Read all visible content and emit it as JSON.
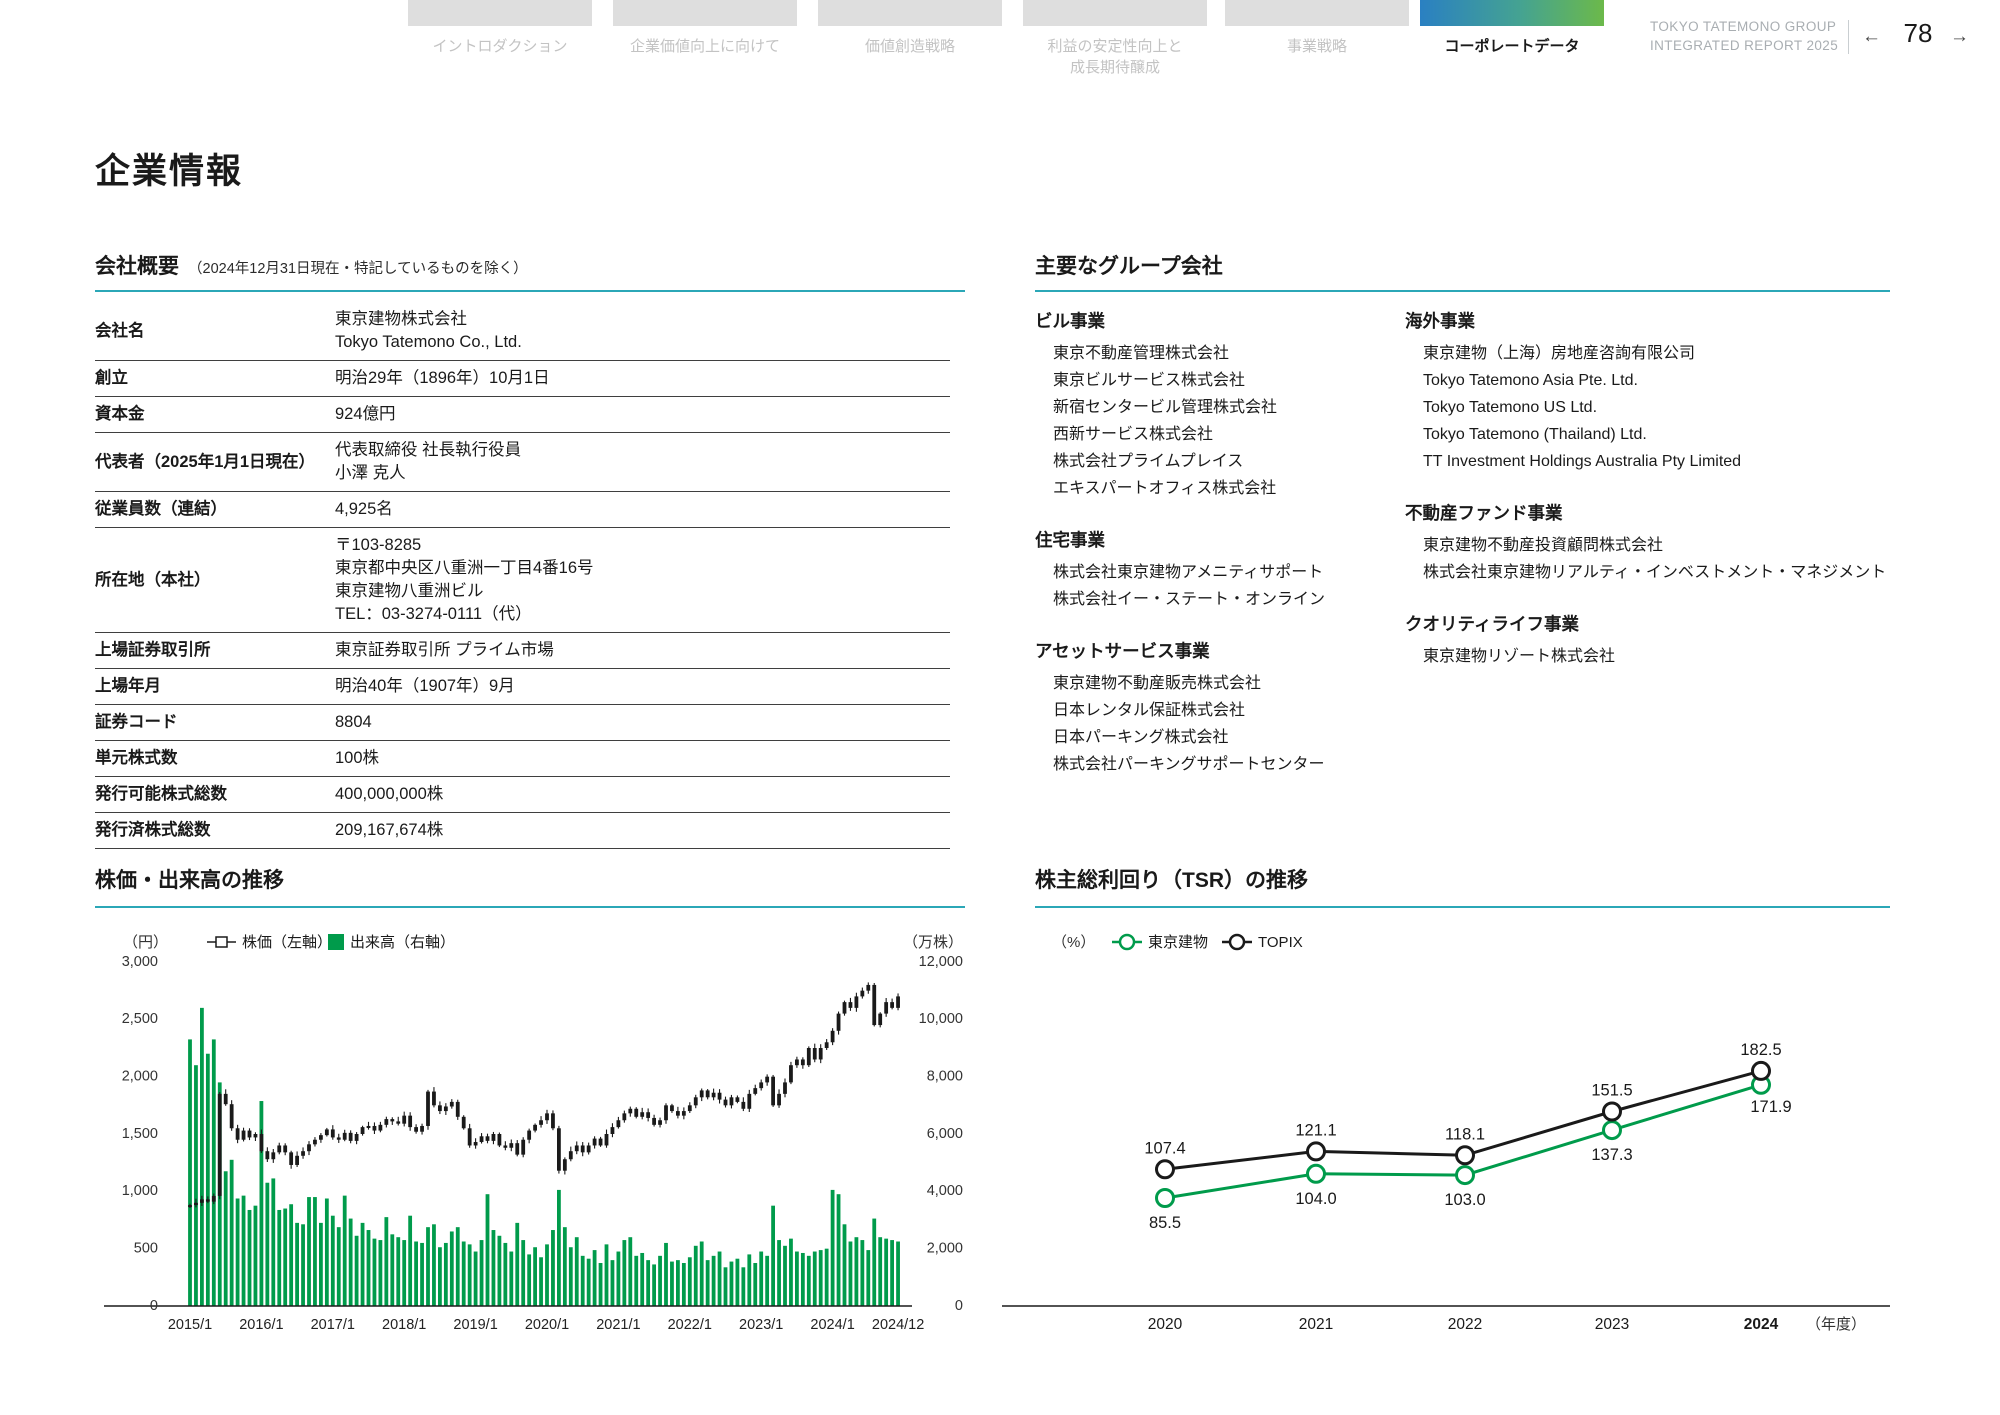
{
  "header": {
    "tabs": [
      {
        "label": "イントロダクション",
        "active": false
      },
      {
        "label": "企業価値向上に向けて",
        "active": false
      },
      {
        "label": "価値創造戦略",
        "active": false
      },
      {
        "label": "利益の安定性向上と\n成長期待醸成",
        "active": false
      },
      {
        "label": "事業戦略",
        "active": false
      },
      {
        "label": "コーポレートデータ",
        "active": true
      }
    ],
    "report_line1": "TOKYO TATEMONO GROUP",
    "report_line2": "INTEGRATED REPORT 2025",
    "pager": {
      "prev": "←",
      "page": "78",
      "next": "→"
    }
  },
  "page_title": "企業情報",
  "company_overview": {
    "title": "会社概要",
    "note": "（2024年12月31日現在・特記しているものを除く）",
    "rows": [
      {
        "label": "会社名",
        "value": "東京建物株式会社\nTokyo Tatemono Co., Ltd."
      },
      {
        "label": "創立",
        "value": "明治29年（1896年）10月1日"
      },
      {
        "label": "資本金",
        "value": "924億円"
      },
      {
        "label": "代表者（2025年1月1日現在）",
        "value": "代表取締役 社長執行役員\n小澤 克人"
      },
      {
        "label": "従業員数（連結）",
        "value": "4,925名"
      },
      {
        "label": "所在地（本社）",
        "value": "〒103-8285\n東京都中央区八重洲一丁目4番16号\n東京建物八重洲ビル\nTEL：03-3274-0111（代）"
      },
      {
        "label": "上場証券取引所",
        "value": "東京証券取引所 プライム市場"
      },
      {
        "label": "上場年月",
        "value": "明治40年（1907年）9月"
      },
      {
        "label": "証券コード",
        "value": "8804"
      },
      {
        "label": "単元株式数",
        "value": "100株"
      },
      {
        "label": "発行可能株式総数",
        "value": "400,000,000株"
      },
      {
        "label": "発行済株式総数",
        "value": "209,167,674株"
      }
    ]
  },
  "group_companies": {
    "title": "主要なグループ会社",
    "columns": [
      [
        {
          "category": "ビル事業",
          "companies": [
            "東京不動産管理株式会社",
            "東京ビルサービス株式会社",
            "新宿センタービル管理株式会社",
            "西新サービス株式会社",
            "株式会社プライムプレイス",
            "エキスパートオフィス株式会社"
          ]
        },
        {
          "category": "住宅事業",
          "companies": [
            "株式会社東京建物アメニティサポート",
            "株式会社イー・ステート・オンライン"
          ]
        },
        {
          "category": "アセットサービス事業",
          "companies": [
            "東京建物不動産販売株式会社",
            "日本レンタル保証株式会社",
            "日本パーキング株式会社",
            "株式会社パーキングサポートセンター"
          ]
        }
      ],
      [
        {
          "category": "海外事業",
          "companies": [
            "東京建物（上海）房地産咨詢有限公司",
            "Tokyo Tatemono Asia Pte. Ltd.",
            "Tokyo Tatemono US Ltd.",
            "Tokyo Tatemono (Thailand) Ltd.",
            "TT Investment Holdings Australia Pty Limited"
          ]
        },
        {
          "category": "不動産ファンド事業",
          "companies": [
            "東京建物不動産投資顧問株式会社",
            "株式会社東京建物リアルティ・インベストメント・マネジメント"
          ]
        },
        {
          "category": "クオリティライフ事業",
          "companies": [
            "東京建物リゾート株式会社"
          ]
        }
      ]
    ]
  },
  "colors": {
    "accent_teal": "#2ba7b7",
    "green": "#009b4b",
    "candle": "#1a1a1a",
    "tab_gradient_start": "#2a80c2",
    "tab_gradient_end": "#6cb94a"
  },
  "chart_data": [
    {
      "id": "stock_volume",
      "type": "candlestick+bar",
      "title": "株価・出来高の推移",
      "unit_left": "（円）",
      "unit_right": "（万株）",
      "legend": [
        {
          "name": "株価（左軸）",
          "marker": "candlestick"
        },
        {
          "name": "出来高（右軸）",
          "marker": "square",
          "color": "#009b4b"
        }
      ],
      "ylim_left": [
        0,
        3000
      ],
      "ylim_right": [
        0,
        12000
      ],
      "y_ticks_left": [
        "3,000",
        "2,500",
        "2,000",
        "1,500",
        "1,000",
        "500",
        "0"
      ],
      "y_ticks_right": [
        "12,000",
        "10,000",
        "8,000",
        "6,000",
        "4,000",
        "2,000",
        "0"
      ],
      "x_ticks": [
        {
          "label": "2015/1",
          "month_index": 0
        },
        {
          "label": "2016/1",
          "month_index": 12
        },
        {
          "label": "2017/1",
          "month_index": 24
        },
        {
          "label": "2018/1",
          "month_index": 36
        },
        {
          "label": "2019/1",
          "month_index": 48
        },
        {
          "label": "2020/1",
          "month_index": 60
        },
        {
          "label": "2021/1",
          "month_index": 72
        },
        {
          "label": "2022/1",
          "month_index": 84
        },
        {
          "label": "2023/1",
          "month_index": 96
        },
        {
          "label": "2024/1",
          "month_index": 108
        },
        {
          "label": "2024/12",
          "month_index": 119
        }
      ],
      "start_month": "2015/1",
      "monthly_close_yen": [
        880,
        900,
        930,
        910,
        960,
        1850,
        1760,
        1550,
        1450,
        1530,
        1470,
        1500,
        1350,
        1280,
        1340,
        1400,
        1340,
        1230,
        1310,
        1350,
        1410,
        1450,
        1490,
        1540,
        1470,
        1450,
        1510,
        1440,
        1500,
        1560,
        1570,
        1530,
        1580,
        1630,
        1610,
        1590,
        1660,
        1560,
        1520,
        1570,
        1870,
        1750,
        1700,
        1740,
        1780,
        1650,
        1550,
        1400,
        1430,
        1480,
        1440,
        1500,
        1400,
        1380,
        1420,
        1320,
        1450,
        1530,
        1580,
        1620,
        1680,
        1550,
        1180,
        1280,
        1350,
        1400,
        1340,
        1400,
        1460,
        1400,
        1500,
        1560,
        1620,
        1680,
        1720,
        1650,
        1690,
        1640,
        1580,
        1620,
        1750,
        1700,
        1660,
        1700,
        1750,
        1820,
        1880,
        1820,
        1860,
        1800,
        1750,
        1820,
        1780,
        1720,
        1850,
        1900,
        1950,
        2000,
        1750,
        1850,
        1950,
        2100,
        2150,
        2100,
        2250,
        2150,
        2250,
        2300,
        2400,
        2550,
        2650,
        2600,
        2700,
        2750,
        2800,
        2450,
        2550,
        2650,
        2600,
        2700
      ],
      "monthly_volume_10k_shares": [
        9300,
        8400,
        10400,
        8800,
        9300,
        7800,
        4700,
        5100,
        3750,
        3850,
        3350,
        3500,
        7150,
        4300,
        4450,
        3350,
        3400,
        3550,
        2900,
        2850,
        3800,
        3800,
        2900,
        3750,
        3150,
        2750,
        3850,
        3050,
        2450,
        2900,
        2650,
        2350,
        2300,
        3100,
        2500,
        2400,
        2300,
        3150,
        2250,
        2200,
        2750,
        2850,
        2050,
        2200,
        2600,
        2750,
        2250,
        2150,
        1900,
        2300,
        3900,
        2650,
        2450,
        2200,
        1900,
        2900,
        2300,
        1800,
        2050,
        1700,
        2150,
        2650,
        4050,
        2750,
        2050,
        2400,
        1750,
        1650,
        1950,
        1500,
        2150,
        1600,
        1900,
        2300,
        2400,
        1750,
        1850,
        1600,
        1450,
        1750,
        2200,
        1550,
        1600,
        1500,
        1700,
        2100,
        2250,
        1600,
        1750,
        1900,
        1350,
        1550,
        1650,
        1350,
        1800,
        1500,
        1900,
        1750,
        3500,
        2300,
        2100,
        2350,
        1900,
        1850,
        1750,
        1900,
        1950,
        2000,
        4050,
        3900,
        2850,
        2250,
        2400,
        2300,
        1950,
        3050,
        2400,
        2350,
        2300,
        2250
      ]
    },
    {
      "id": "tsr",
      "type": "line",
      "title": "株主総利回り（TSR）の推移",
      "unit": "（%）",
      "categories": [
        "2020",
        "2021",
        "2022",
        "2023",
        "2024"
      ],
      "xlabel_suffix": "（年度）",
      "series": [
        {
          "name": "東京建物",
          "color": "#009b4b",
          "values": [
            85.5,
            104.0,
            103.0,
            137.3,
            171.9
          ]
        },
        {
          "name": "TOPIX",
          "color": "#1a1a1a",
          "values": [
            107.4,
            121.1,
            118.1,
            151.5,
            182.5
          ]
        }
      ],
      "legend_position": "top",
      "grid": false
    }
  ]
}
